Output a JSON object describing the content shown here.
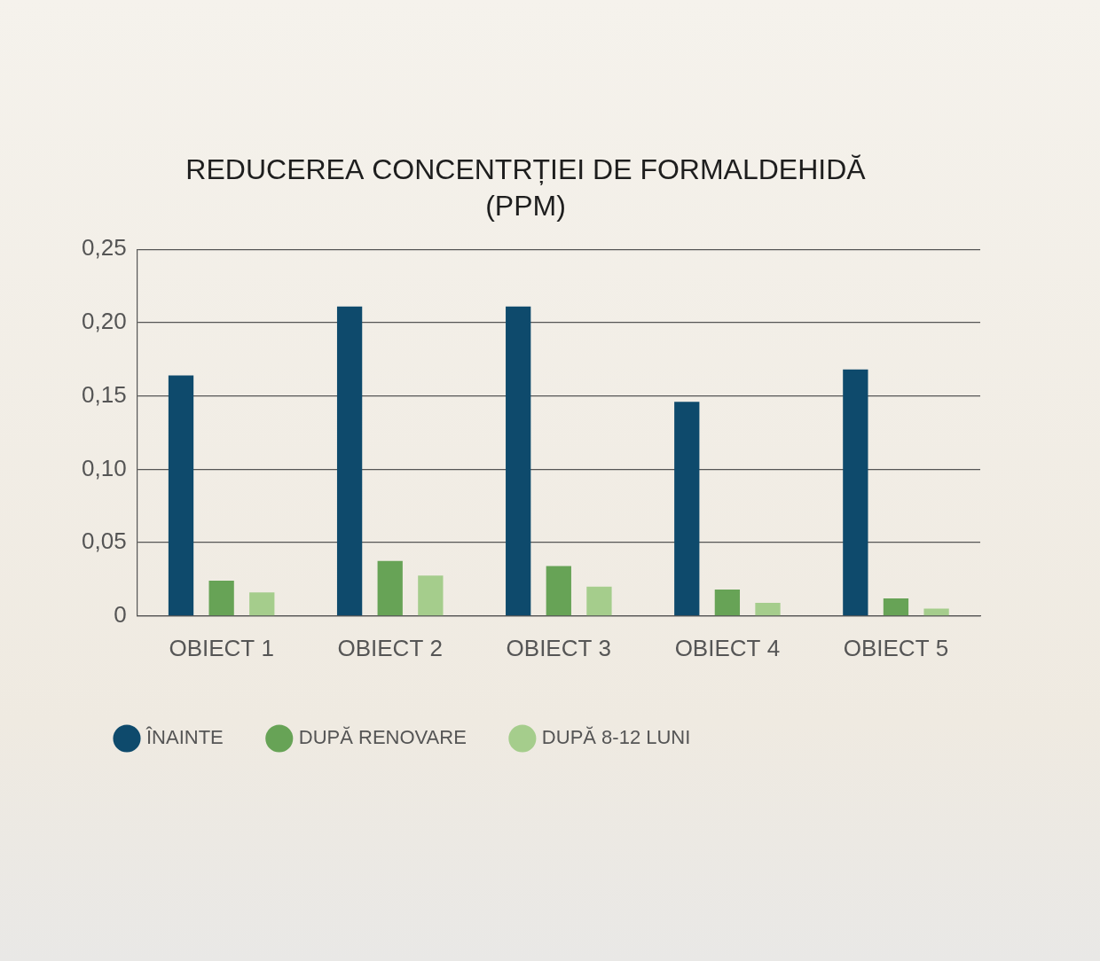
{
  "chart_data": {
    "type": "bar",
    "title": [
      "REDUCEREA CONCENTRȚIEI DE FORMALDEHIDĂ",
      "(PPM)"
    ],
    "categories": [
      "OBIECT 1",
      "OBIECT 2",
      "OBIECT 3",
      "OBIECT 4",
      "OBIECT 5"
    ],
    "series": [
      {
        "name": "ÎNAINTE",
        "color": "#0e4a6c",
        "values": [
          0.164,
          0.211,
          0.211,
          0.146,
          0.168
        ]
      },
      {
        "name": "DUPĂ RENOVARE",
        "color": "#67a356",
        "values": [
          0.024,
          0.0375,
          0.034,
          0.018,
          0.012
        ]
      },
      {
        "name": "DUPĂ 8-12 LUNI",
        "color": "#a5cd8c",
        "values": [
          0.016,
          0.0275,
          0.02,
          0.009,
          0.005
        ]
      }
    ],
    "ylim": [
      0,
      0.25
    ],
    "yticks": [
      0,
      {
        "value": 0.05,
        "label": "0,05"
      },
      {
        "value": 0.1,
        "label": "0,10"
      },
      {
        "value": 0.15,
        "label": "0,15"
      },
      {
        "value": 0.2,
        "label": "0,20"
      },
      {
        "value": 0.25,
        "label": "0,25"
      }
    ],
    "grid": true,
    "legend": "bottom"
  }
}
